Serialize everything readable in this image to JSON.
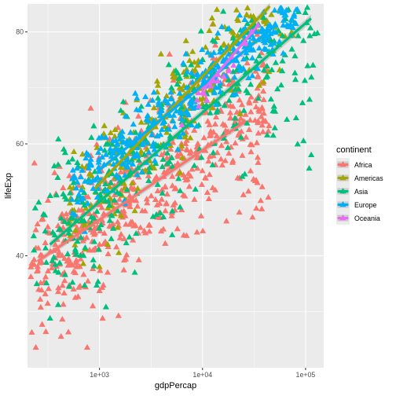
{
  "chart_data": {
    "type": "scatter",
    "x_scale": "log10",
    "xlim": [
      200,
      150000
    ],
    "ylim": [
      20,
      85
    ],
    "xlabel": "gdpPercap",
    "ylabel": "lifeExp",
    "x_ticks": [
      1000,
      10000,
      100000
    ],
    "x_tick_labels": [
      "1e+03",
      "1e+04",
      "1e+05"
    ],
    "y_ticks": [
      40,
      60,
      80
    ],
    "y_tick_labels": [
      "40",
      "60",
      "80"
    ],
    "grid": true,
    "legend": {
      "title": "continent",
      "position": "right",
      "entries": [
        "Africa",
        "Americas",
        "Asia",
        "Europe",
        "Oceania"
      ]
    },
    "marker": "triangle",
    "series": [
      {
        "name": "Africa",
        "color": "#F8766D",
        "approx_points": 624,
        "fit": {
          "x": [
            250,
            25000
          ],
          "y": [
            39.0,
            63.8
          ],
          "band": 1.3
        },
        "sample": [
          [
            241,
            23.6
          ],
          [
            300,
            36.2
          ],
          [
            350,
            38.5
          ],
          [
            400,
            40.0
          ],
          [
            450,
            42.6
          ],
          [
            500,
            44.0
          ],
          [
            600,
            38.0
          ],
          [
            700,
            43.0
          ],
          [
            800,
            41.0
          ],
          [
            900,
            45.0
          ],
          [
            1000,
            42.0
          ],
          [
            1100,
            47.5
          ],
          [
            1300,
            50.0
          ],
          [
            1500,
            46.0
          ],
          [
            1800,
            49.0
          ],
          [
            2000,
            52.0
          ],
          [
            2300,
            55.0
          ],
          [
            2600,
            48.0
          ],
          [
            3000,
            57.0
          ],
          [
            3500,
            50.0
          ],
          [
            4000,
            58.0
          ],
          [
            5000,
            61.0
          ],
          [
            6000,
            55.0
          ],
          [
            7000,
            63.0
          ],
          [
            9000,
            60.0
          ],
          [
            12000,
            62.0
          ],
          [
            15000,
            66.0
          ],
          [
            20000,
            71.0
          ],
          [
            25000,
            64.0
          ],
          [
            760,
            23.6
          ],
          [
            330,
            44.0
          ],
          [
            560,
            34.0
          ],
          [
            860,
            31.0
          ],
          [
            1200,
            37.0
          ],
          [
            420,
            47.0
          ],
          [
            2500,
            45.0
          ],
          [
            5500,
            52.0
          ],
          [
            11000,
            72.0
          ]
        ]
      },
      {
        "name": "Americas",
        "color": "#A3A500",
        "approx_points": 300,
        "fit": {
          "x": [
            900,
            45000
          ],
          "y": [
            52.0,
            84.6
          ],
          "band": 1.3
        },
        "sample": [
          [
            1000,
            38.0
          ],
          [
            1200,
            42.0
          ],
          [
            1500,
            45.0
          ],
          [
            1800,
            50.0
          ],
          [
            2000,
            55.0
          ],
          [
            2500,
            58.0
          ],
          [
            3000,
            60.0
          ],
          [
            3500,
            63.0
          ],
          [
            4000,
            65.0
          ],
          [
            5000,
            68.0
          ],
          [
            6000,
            70.0
          ],
          [
            7000,
            72.0
          ],
          [
            8000,
            73.0
          ],
          [
            9000,
            74.0
          ],
          [
            10000,
            75.0
          ],
          [
            12000,
            76.0
          ],
          [
            15000,
            77.0
          ],
          [
            18000,
            77.0
          ],
          [
            22000,
            78.0
          ],
          [
            28000,
            79.0
          ],
          [
            35000,
            80.0
          ],
          [
            42000,
            82.0
          ],
          [
            2200,
            48.0
          ],
          [
            4500,
            62.0
          ],
          [
            6500,
            66.0
          ],
          [
            1400,
            52.0
          ],
          [
            3200,
            56.0
          ]
        ]
      },
      {
        "name": "Asia",
        "color": "#00BF7D",
        "approx_points": 396,
        "fit": {
          "x": [
            330,
            113000
          ],
          "y": [
            42.0,
            82.4
          ],
          "band": 1.5
        },
        "sample": [
          [
            331,
            28.8
          ],
          [
            400,
            37.0
          ],
          [
            500,
            44.0
          ],
          [
            600,
            50.0
          ],
          [
            700,
            40.0
          ],
          [
            800,
            45.0
          ],
          [
            900,
            55.0
          ],
          [
            1000,
            50.0
          ],
          [
            1200,
            60.0
          ],
          [
            1500,
            48.0
          ],
          [
            2000,
            55.0
          ],
          [
            2500,
            60.0
          ],
          [
            3000,
            63.0
          ],
          [
            4000,
            67.0
          ],
          [
            5000,
            70.0
          ],
          [
            6000,
            66.0
          ],
          [
            8000,
            72.0
          ],
          [
            10000,
            75.0
          ],
          [
            15000,
            77.0
          ],
          [
            20000,
            78.0
          ],
          [
            25000,
            80.0
          ],
          [
            30000,
            82.0
          ],
          [
            40000,
            80.0
          ],
          [
            59265,
            73.0
          ],
          [
            80894,
            64.6
          ],
          [
            95458,
            60.5
          ],
          [
            108382,
            55.6
          ],
          [
            109347,
            67.9
          ],
          [
            113523,
            58.0
          ],
          [
            450,
            59.0
          ],
          [
            560,
            53.0
          ],
          [
            1300,
            43.0
          ],
          [
            2200,
            37.0
          ]
        ]
      },
      {
        "name": "Europe",
        "color": "#00B0F6",
        "approx_points": 360,
        "fit": {
          "x": [
            950,
            49000
          ],
          "y": [
            55.0,
            80.9
          ],
          "band": 1.0
        },
        "sample": [
          [
            1000,
            55.0
          ],
          [
            1500,
            60.0
          ],
          [
            2000,
            62.0
          ],
          [
            3000,
            64.0
          ],
          [
            4000,
            66.0
          ],
          [
            5000,
            68.0
          ],
          [
            6000,
            69.0
          ],
          [
            7000,
            70.0
          ],
          [
            8000,
            71.0
          ],
          [
            9000,
            71.5
          ],
          [
            10000,
            72.0
          ],
          [
            12000,
            73.0
          ],
          [
            14000,
            74.0
          ],
          [
            16000,
            75.0
          ],
          [
            18000,
            76.0
          ],
          [
            20000,
            77.0
          ],
          [
            24000,
            78.0
          ],
          [
            28000,
            79.0
          ],
          [
            33000,
            80.0
          ],
          [
            38000,
            80.5
          ],
          [
            45000,
            81.0
          ],
          [
            49000,
            80.0
          ]
        ]
      },
      {
        "name": "Oceania",
        "color": "#E76BF3",
        "approx_points": 24,
        "fit": {
          "x": [
            10000,
            35000
          ],
          "y": [
            69.5,
            81.3
          ],
          "band": 0.8
        },
        "sample": [
          [
            10040,
            69.1
          ],
          [
            12000,
            70.3
          ],
          [
            14000,
            71.2
          ],
          [
            16000,
            72.0
          ],
          [
            18000,
            73.0
          ],
          [
            20000,
            74.0
          ],
          [
            23000,
            76.0
          ],
          [
            26000,
            78.0
          ],
          [
            30000,
            80.0
          ],
          [
            34435,
            81.2
          ]
        ]
      }
    ]
  }
}
